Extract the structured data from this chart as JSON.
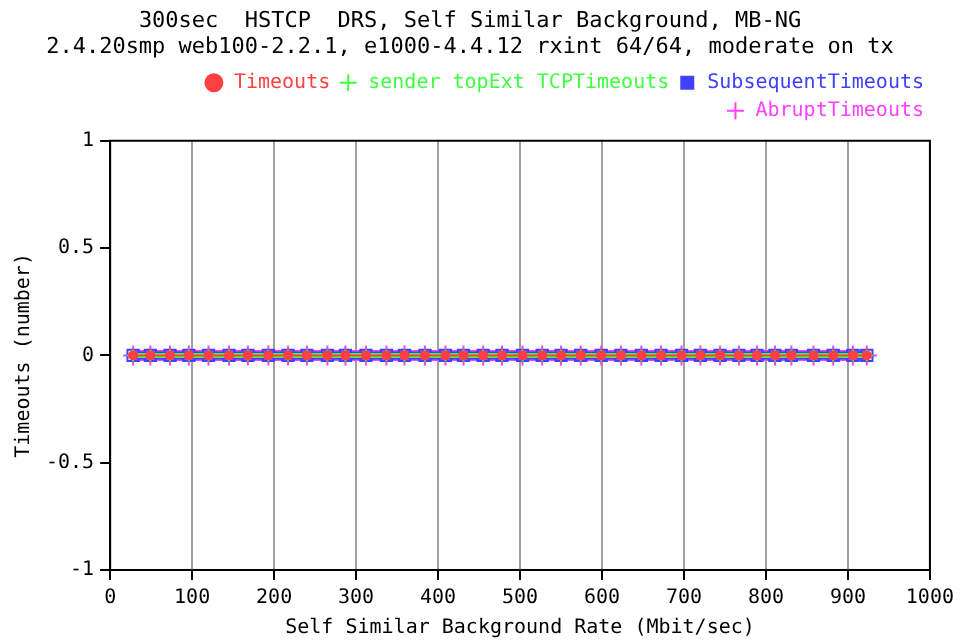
{
  "chart_data": {
    "type": "line",
    "title": "300sec  HSTCP  DRS, Self Similar Background, MB-NG",
    "subtitle": "2.4.20smp web100-2.2.1, e1000-4.4.12 rxint 64/64, moderate on tx",
    "xlabel": "Self Similar Background Rate (Mbit/sec)",
    "ylabel": "Timeouts (number)",
    "x": [
      28,
      49,
      73,
      96,
      120,
      145,
      168,
      193,
      217,
      240,
      265,
      287,
      312,
      337,
      359,
      384,
      409,
      431,
      455,
      478,
      503,
      527,
      550,
      574,
      599,
      623,
      648,
      672,
      697,
      720,
      744,
      767,
      789,
      811,
      831,
      858,
      882,
      906,
      923
    ],
    "series": [
      {
        "name": "Timeouts",
        "color": "#ff4040",
        "marker": "circle",
        "values": [
          0,
          0,
          0,
          0,
          0,
          0,
          0,
          0,
          0,
          0,
          0,
          0,
          0,
          0,
          0,
          0,
          0,
          0,
          0,
          0,
          0,
          0,
          0,
          0,
          0,
          0,
          0,
          0,
          0,
          0,
          0,
          0,
          0,
          0,
          0,
          0,
          0,
          0,
          0
        ]
      },
      {
        "name": "sender topExt TCPTimeouts",
        "color": "#40ff40",
        "marker": "cross",
        "values": [
          0,
          0,
          0,
          0,
          0,
          0,
          0,
          0,
          0,
          0,
          0,
          0,
          0,
          0,
          0,
          0,
          0,
          0,
          0,
          0,
          0,
          0,
          0,
          0,
          0,
          0,
          0,
          0,
          0,
          0,
          0,
          0,
          0,
          0,
          0,
          0,
          0,
          0,
          0
        ]
      },
      {
        "name": "SubsequentTimeouts",
        "color": "#4040ff",
        "marker": "square",
        "values": [
          0,
          0,
          0,
          0,
          0,
          0,
          0,
          0,
          0,
          0,
          0,
          0,
          0,
          0,
          0,
          0,
          0,
          0,
          0,
          0,
          0,
          0,
          0,
          0,
          0,
          0,
          0,
          0,
          0,
          0,
          0,
          0,
          0,
          0,
          0,
          0,
          0,
          0,
          0
        ]
      },
      {
        "name": "AbruptTimeouts",
        "color": "#ff40ff",
        "marker": "cross",
        "values": [
          0,
          0,
          0,
          0,
          0,
          0,
          0,
          0,
          0,
          0,
          0,
          0,
          0,
          0,
          0,
          0,
          0,
          0,
          0,
          0,
          0,
          0,
          0,
          0,
          0,
          0,
          0,
          0,
          0,
          0,
          0,
          0,
          0,
          0,
          0,
          0,
          0,
          0,
          0
        ]
      }
    ],
    "xlim": [
      0,
      1000
    ],
    "xticks": [
      0,
      100,
      200,
      300,
      400,
      500,
      600,
      700,
      800,
      900,
      1000
    ],
    "ylim": [
      -1,
      1
    ],
    "yticks": [
      -1,
      -0.5,
      0,
      0.5,
      1
    ],
    "grid": "x",
    "legend": "top right",
    "line_style": "solid"
  }
}
